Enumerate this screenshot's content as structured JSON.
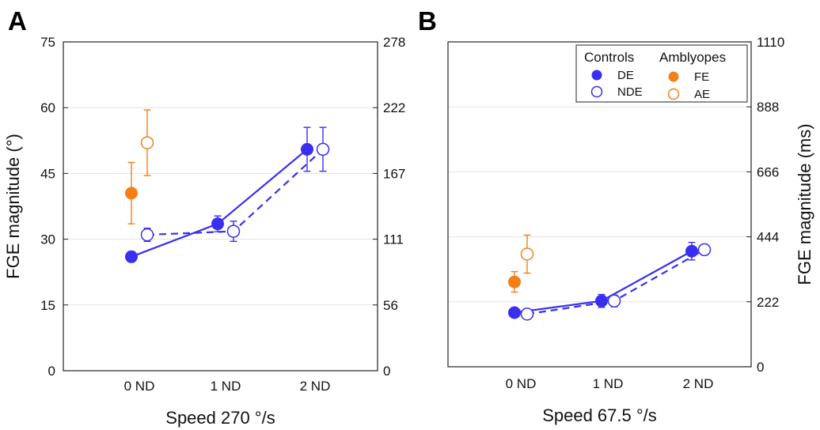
{
  "colors": {
    "control": "#3a2ff0",
    "amblyope": "#f57f17",
    "grid": "#e3e3e3",
    "axis": "#222222"
  },
  "legend": {
    "group_controls": "Controls",
    "group_amblyopes": "Amblyopes",
    "items": [
      {
        "label": "DE",
        "marker": "filled-circle",
        "color": "#3a2ff0"
      },
      {
        "label": "NDE",
        "marker": "open-circle",
        "color": "#3a2ff0"
      },
      {
        "label": "FE",
        "marker": "filled-circle",
        "color": "#f57f17"
      },
      {
        "label": "AE",
        "marker": "open-circle",
        "color": "#f57f17"
      }
    ]
  },
  "chart_data": [
    {
      "panel": "A",
      "type": "line",
      "xlabel": "Speed 270 °/s",
      "ylabel": "FGE magnitude (°)",
      "categories": [
        "0 ND",
        "1 ND",
        "2 ND"
      ],
      "ylim": [
        0,
        75
      ],
      "yticks": [
        0,
        15,
        30,
        45,
        60,
        75
      ],
      "y2ticks": [
        "0",
        "56",
        "111",
        "167",
        "222",
        "278"
      ],
      "grid": true,
      "legend": false,
      "series": [
        {
          "name": "DE",
          "group": "Controls",
          "values": [
            26,
            33.5,
            50.5
          ],
          "err": [
            1.2,
            1.8,
            5
          ],
          "line": "solid",
          "fill": true
        },
        {
          "name": "NDE",
          "group": "Controls",
          "values": [
            31,
            31.8,
            50.5
          ],
          "err": [
            1.5,
            2.3,
            5
          ],
          "line": "dashed",
          "fill": false
        },
        {
          "name": "FE",
          "group": "Amblyopes",
          "values": [
            40.5,
            null,
            null
          ],
          "err": [
            7,
            null,
            null
          ],
          "line": "none",
          "fill": true
        },
        {
          "name": "AE",
          "group": "Amblyopes",
          "values": [
            52,
            null,
            null
          ],
          "err": [
            7.5,
            null,
            null
          ],
          "line": "none",
          "fill": false
        }
      ]
    },
    {
      "panel": "B",
      "type": "line",
      "xlabel": "Speed 67.5 °/s",
      "ylabel": "FGE magnitude (ms)",
      "categories": [
        "0 ND",
        "1 ND",
        "2 ND"
      ],
      "ylim": [
        0,
        1110
      ],
      "y2ticks": [
        "0",
        "222",
        "444",
        "666",
        "888",
        "1110"
      ],
      "grid": true,
      "legend": "top-right",
      "series": [
        {
          "name": "DE",
          "group": "Controls",
          "values": [
            185,
            225,
            395
          ],
          "err": [
            12,
            22,
            30
          ],
          "line": "solid",
          "fill": true
        },
        {
          "name": "NDE",
          "group": "Controls",
          "values": [
            180,
            225,
            400
          ],
          "err": [
            15,
            20,
            18
          ],
          "line": "dashed",
          "fill": false
        },
        {
          "name": "FE",
          "group": "Amblyopes",
          "values": [
            290,
            null,
            null
          ],
          "err": [
            35,
            null,
            null
          ],
          "line": "none",
          "fill": true
        },
        {
          "name": "AE",
          "group": "Amblyopes",
          "values": [
            385,
            null,
            null
          ],
          "err": [
            65,
            null,
            null
          ],
          "line": "none",
          "fill": false
        }
      ]
    }
  ]
}
